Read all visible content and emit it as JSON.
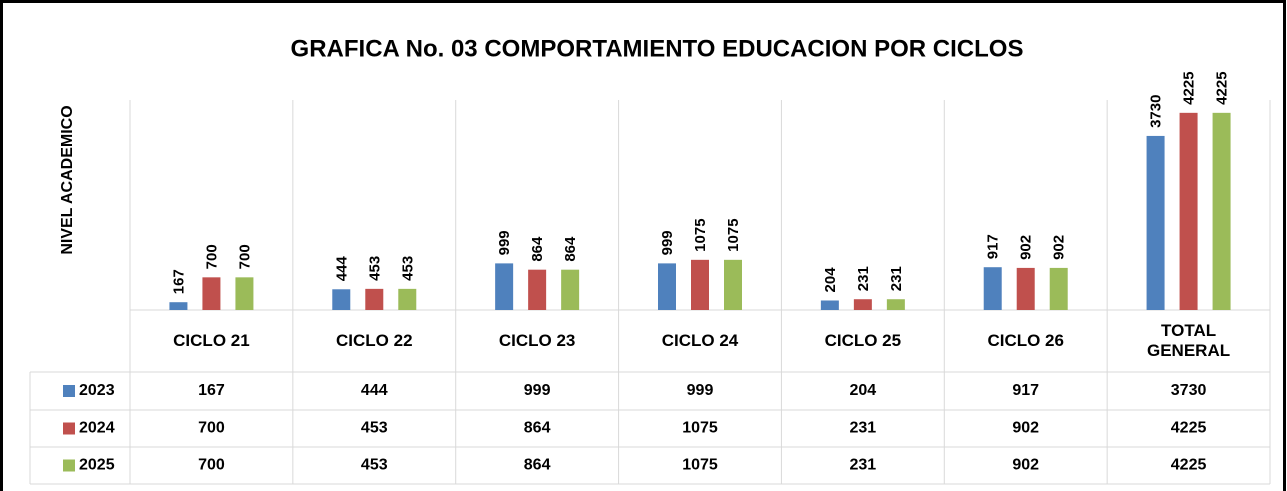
{
  "chart_data": {
    "type": "bar",
    "title": "GRAFICA No. 03 COMPORTAMIENTO EDUCACION POR CICLOS",
    "y_label": "NIVEL ACADEMICO",
    "categories": [
      "CICLO 21",
      "CICLO 22",
      "CICLO 23",
      "CICLO 24",
      "CICLO 25",
      "CICLO 26",
      "TOTAL GENERAL"
    ],
    "series": [
      {
        "name": "2023",
        "color": "#4f81bd",
        "values": [
          167,
          444,
          999,
          999,
          204,
          917,
          3730
        ]
      },
      {
        "name": "2024",
        "color": "#c0504d",
        "values": [
          700,
          453,
          864,
          1075,
          231,
          902,
          4225
        ]
      },
      {
        "name": "2025",
        "color": "#9bbb59",
        "values": [
          700,
          453,
          864,
          1075,
          231,
          902,
          4225
        ]
      }
    ],
    "ylim": [
      0,
      4500
    ]
  }
}
